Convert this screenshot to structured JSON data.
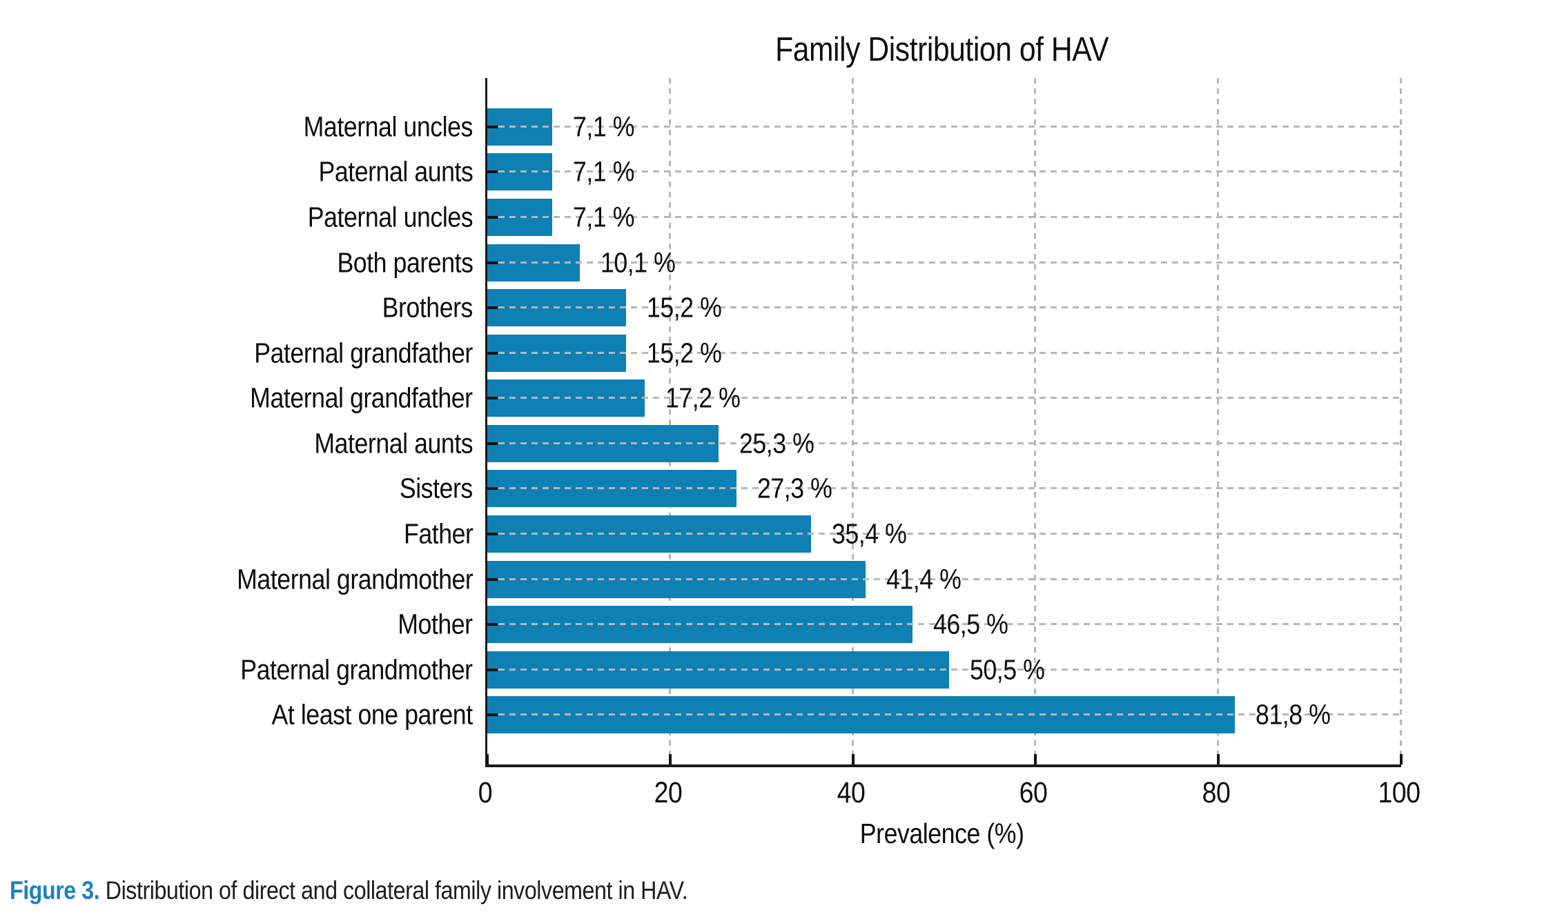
{
  "chart_data": {
    "type": "bar",
    "orientation": "horizontal",
    "title": "Family Distribution of HAV",
    "xlabel": "Prevalence (%)",
    "xlim": [
      0,
      100
    ],
    "xticks": [
      0,
      20,
      40,
      60,
      80,
      100
    ],
    "grid": "dashed, both axes",
    "legend": "none",
    "bar_color": "#0e80b4",
    "categories": [
      "Maternal uncles",
      "Paternal aunts",
      "Paternal uncles",
      "Both parents",
      "Brothers",
      "Paternal grandfather",
      "Maternal grandfather",
      "Maternal aunts",
      "Sisters",
      "Father",
      "Maternal grandmother",
      "Mother",
      "Paternal grandmother",
      "At least one parent"
    ],
    "values": [
      7.1,
      7.1,
      7.1,
      10.1,
      15.2,
      15.2,
      17.2,
      25.3,
      27.3,
      35.4,
      41.4,
      46.5,
      50.5,
      81.8
    ],
    "value_labels": [
      "7,1 %",
      "7,1 %",
      "7,1 %",
      "10,1 %",
      "15,2 %",
      "15,2 %",
      "17,2 %",
      "25,3 %",
      "27,3 %",
      "35,4 %",
      "41,4 %",
      "46,5 %",
      "50,5 %",
      "81,8 %"
    ]
  },
  "caption": {
    "label": "Figure 3.",
    "text": "Distribution of direct and collateral family involvement in HAV."
  },
  "colors": {
    "bar": "#0e80b4",
    "caption_label": "#1f81ba",
    "grid": "#b7b7b7",
    "axis": "#1a1a1a",
    "text": "#0d0d0d",
    "background": "#ffffff"
  }
}
